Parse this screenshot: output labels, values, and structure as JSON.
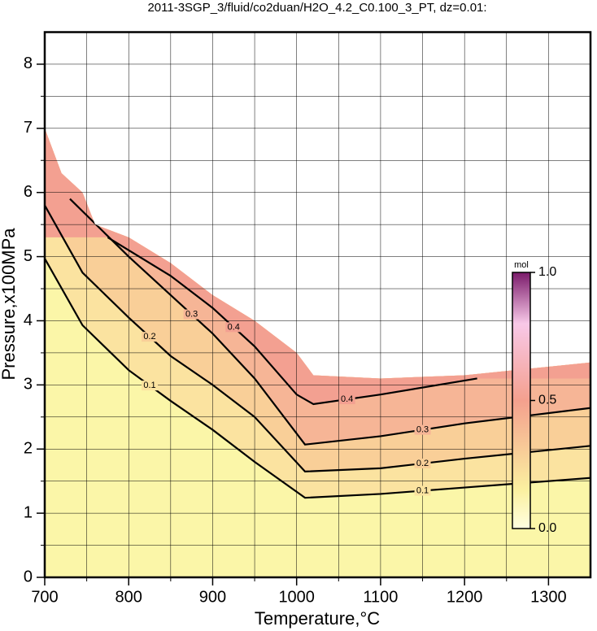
{
  "chart_data": {
    "type": "contour",
    "title": "2011-3SGP_3/fluid/co2duan/H2O_4.2_C0.100_3_PT, dz=0.01:",
    "x_label": "Temperature,°C",
    "y_label": "Pressure,x100MPa",
    "xlim": [
      700,
      1350
    ],
    "ylim": [
      0,
      8.5
    ],
    "xticks": [
      700,
      800,
      900,
      1000,
      1100,
      1200,
      1300
    ],
    "yticks": [
      0,
      1,
      2,
      3,
      4,
      5,
      6,
      7,
      8
    ],
    "xminorticks": [
      750,
      850,
      950,
      1050,
      1150,
      1250
    ],
    "yminorticks": [
      0.5,
      1.5,
      2.5,
      3.5,
      4.5,
      5.5,
      6.5,
      7.5
    ],
    "grid": true,
    "background_color": "#fbf6a8",
    "domain_boundary": {
      "x": [
        700,
        720,
        745,
        760,
        800,
        850,
        900,
        950,
        1000,
        1020,
        1100,
        1200,
        1350
      ],
      "y": [
        7.0,
        6.3,
        6.0,
        5.5,
        5.3,
        4.9,
        4.4,
        4.0,
        3.5,
        3.15,
        3.1,
        3.15,
        3.35
      ]
    },
    "contours": [
      {
        "level": 0.1,
        "color": "#fbe3a0",
        "x": [
          700,
          745,
          800,
          850,
          900,
          950,
          1010,
          1100,
          1200,
          1350
        ],
        "y": [
          4.97,
          3.93,
          3.23,
          2.75,
          2.3,
          1.8,
          1.24,
          1.3,
          1.4,
          1.55
        ]
      },
      {
        "level": 0.2,
        "color": "#f9cf98",
        "x": [
          700,
          745,
          800,
          850,
          900,
          950,
          1010,
          1100,
          1200,
          1350
        ],
        "y": [
          5.8,
          4.75,
          4.05,
          3.45,
          3.0,
          2.5,
          1.65,
          1.7,
          1.85,
          2.05
        ]
      },
      {
        "level": 0.3,
        "color": "#f6b596",
        "x": [
          730,
          800,
          850,
          900,
          950,
          1010,
          1100,
          1200,
          1350
        ],
        "y": [
          5.9,
          5.0,
          4.4,
          3.8,
          3.1,
          2.07,
          2.2,
          2.4,
          2.64
        ]
      },
      {
        "level": 0.4,
        "color": "#f3a091",
        "x": [
          775,
          850,
          900,
          950,
          1000,
          1020,
          1100,
          1215
        ],
        "y": [
          5.3,
          4.7,
          4.2,
          3.6,
          2.85,
          2.7,
          2.85,
          3.1
        ]
      }
    ],
    "colorbar": {
      "label": "mol",
      "lim": [
        0,
        1
      ],
      "ticks": [
        {
          "value": 0,
          "label": "0.0"
        },
        0.5,
        {
          "value": 1,
          "label": "1.0"
        }
      ]
    }
  }
}
